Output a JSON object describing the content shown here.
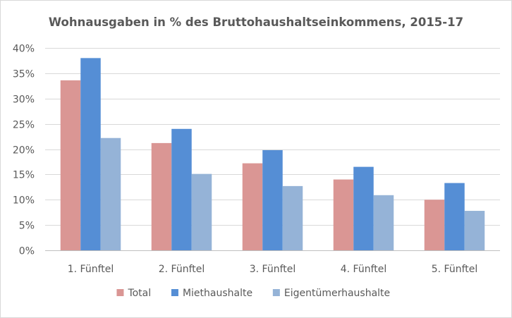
{
  "chart_data": {
    "type": "bar",
    "title": "Wohnausgaben in % des Bruttohaushaltseinkommens,  2015-17",
    "xlabel": "",
    "ylabel": "",
    "categories": [
      "1. Fünftel",
      "2. Fünftel",
      "3. Fünftel",
      "4. Fünftel",
      "5. Fünftel"
    ],
    "series": [
      {
        "name": "Total",
        "color": "#da9694",
        "values": [
          33.6,
          21.2,
          17.2,
          14.0,
          10.0
        ]
      },
      {
        "name": "Miethaushalte",
        "color": "#558ed5",
        "values": [
          38.0,
          24.0,
          19.8,
          16.5,
          13.3
        ]
      },
      {
        "name": "Eigentümerhaushalte",
        "color": "#95b3d7",
        "values": [
          22.2,
          15.1,
          12.7,
          10.9,
          7.8
        ]
      }
    ],
    "ylim": [
      0,
      40
    ],
    "yticks": [
      0,
      5,
      10,
      15,
      20,
      25,
      30,
      35,
      40
    ],
    "ytick_labels": [
      "0%",
      "5%",
      "10%",
      "15%",
      "20%",
      "25%",
      "30%",
      "35%",
      "40%"
    ],
    "grid": true,
    "legend_position": "bottom"
  }
}
